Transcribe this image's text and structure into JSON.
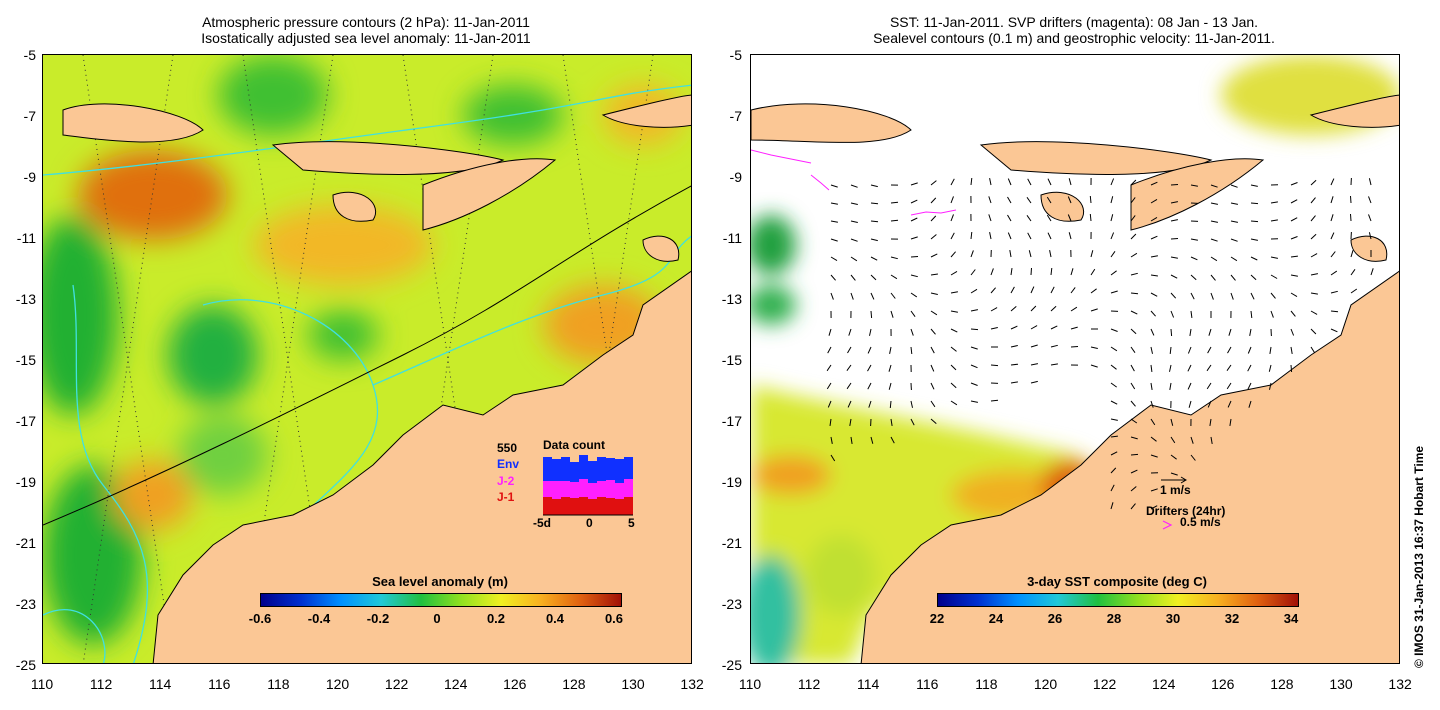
{
  "left_panel": {
    "title_line1": "Atmospheric pressure contours (2 hPa): 11-Jan-2011",
    "title_line2": "Isostatically adjusted sea level anomaly: 11-Jan-2011",
    "colorbar": {
      "title": "Sea level anomaly (m)",
      "ticks": [
        "-0.6",
        "-0.4",
        "-0.2",
        "0",
        "0.2",
        "0.4",
        "0.6"
      ]
    },
    "data_count": {
      "title": "Data count",
      "max_label": "550",
      "series": [
        {
          "name": "Env",
          "color": "#1030ff"
        },
        {
          "name": "J-2",
          "color": "#ff20ff"
        },
        {
          "name": "J-1",
          "color": "#e01010"
        }
      ],
      "x_ticks": [
        "-5d",
        "0",
        "5"
      ]
    }
  },
  "right_panel": {
    "title_line1": "SST: 11-Jan-2011. SVP drifters (magenta): 08 Jan - 13 Jan.",
    "title_line2": "Sealevel contours (0.1 m) and geostrophic velocity: 11-Jan-2011.",
    "colorbar": {
      "title": "3-day SST composite (deg C)",
      "ticks": [
        "22",
        "24",
        "26",
        "28",
        "30",
        "32",
        "34"
      ]
    },
    "legend": {
      "velocity_scale": "1 m/s",
      "drifters_label": "Drifters (24hr)",
      "drifters_scale": "0.5 m/s"
    }
  },
  "y_axis_labels": [
    "-5",
    "-7",
    "-9",
    "-11",
    "-13",
    "-15",
    "-17",
    "-19",
    "-21",
    "-23",
    "-25"
  ],
  "x_axis_labels": [
    "110",
    "112",
    "114",
    "116",
    "118",
    "120",
    "122",
    "124",
    "126",
    "128",
    "130",
    "132"
  ],
  "copyright": "© IMOS 31-Jan-2013 16:37 Hobart Time",
  "colors": {
    "land": "#fbc795",
    "ocean_base": "#c9ec2a",
    "contour_cyan": "#40e0e0",
    "coast": "#000000"
  }
}
